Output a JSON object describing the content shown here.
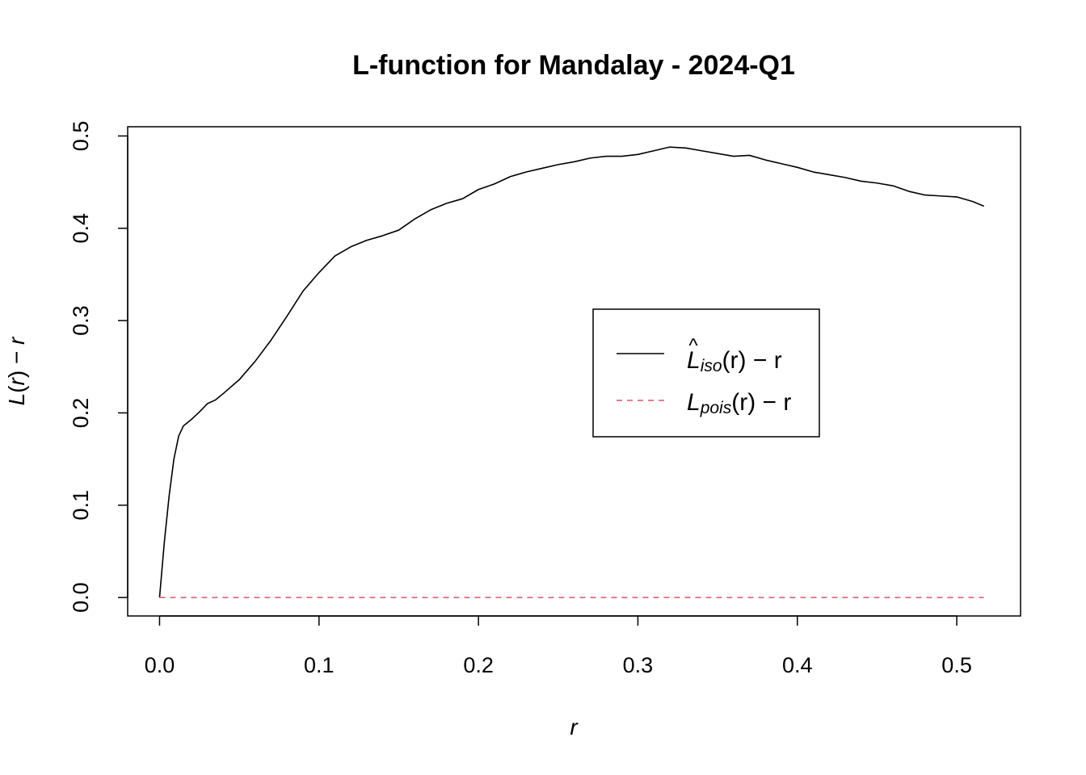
{
  "chart_data": {
    "type": "line",
    "title": "L-function for Mandalay - 2024-Q1",
    "xlabel": "r",
    "ylabel": "L(r) − r",
    "xlim": [
      -0.02,
      0.54
    ],
    "ylim": [
      -0.02,
      0.51
    ],
    "xticks": [
      0.0,
      0.1,
      0.2,
      0.3,
      0.4,
      0.5
    ],
    "xtick_labels": [
      "0.0",
      "0.1",
      "0.2",
      "0.3",
      "0.4",
      "0.5"
    ],
    "yticks": [
      0.0,
      0.1,
      0.2,
      0.3,
      0.4,
      0.5
    ],
    "ytick_labels": [
      "0.0",
      "0.1",
      "0.2",
      "0.3",
      "0.4",
      "0.5"
    ],
    "grid": false,
    "legend_position": "center-right",
    "series": [
      {
        "label_main": "L",
        "label_hat": "^",
        "label_sub": "iso",
        "label_rest": "(r) − r",
        "color": "#000000",
        "dash": "solid",
        "x": [
          0.0,
          0.003,
          0.006,
          0.009,
          0.012,
          0.015,
          0.02,
          0.025,
          0.03,
          0.035,
          0.04,
          0.05,
          0.06,
          0.07,
          0.08,
          0.09,
          0.1,
          0.11,
          0.12,
          0.13,
          0.14,
          0.15,
          0.16,
          0.17,
          0.18,
          0.19,
          0.2,
          0.21,
          0.22,
          0.23,
          0.24,
          0.25,
          0.26,
          0.27,
          0.28,
          0.29,
          0.3,
          0.31,
          0.32,
          0.33,
          0.34,
          0.35,
          0.36,
          0.37,
          0.38,
          0.39,
          0.4,
          0.41,
          0.42,
          0.43,
          0.44,
          0.45,
          0.46,
          0.47,
          0.48,
          0.49,
          0.5,
          0.51,
          0.517
        ],
        "y": [
          0.0,
          0.06,
          0.11,
          0.15,
          0.175,
          0.186,
          0.193,
          0.201,
          0.21,
          0.214,
          0.221,
          0.236,
          0.256,
          0.279,
          0.305,
          0.332,
          0.352,
          0.37,
          0.38,
          0.387,
          0.392,
          0.398,
          0.41,
          0.42,
          0.427,
          0.432,
          0.442,
          0.448,
          0.456,
          0.461,
          0.465,
          0.469,
          0.472,
          0.476,
          0.478,
          0.478,
          0.48,
          0.484,
          0.488,
          0.487,
          0.484,
          0.481,
          0.478,
          0.479,
          0.474,
          0.47,
          0.466,
          0.461,
          0.458,
          0.455,
          0.451,
          0.449,
          0.446,
          0.44,
          0.436,
          0.435,
          0.434,
          0.429,
          0.424
        ]
      },
      {
        "label_main": "L",
        "label_hat": "",
        "label_sub": "pois",
        "label_rest": "(r) − r",
        "color": "#DF536B",
        "dash": "dashed",
        "x": [
          0.0,
          0.517
        ],
        "y": [
          0.0,
          0.0
        ]
      }
    ]
  }
}
